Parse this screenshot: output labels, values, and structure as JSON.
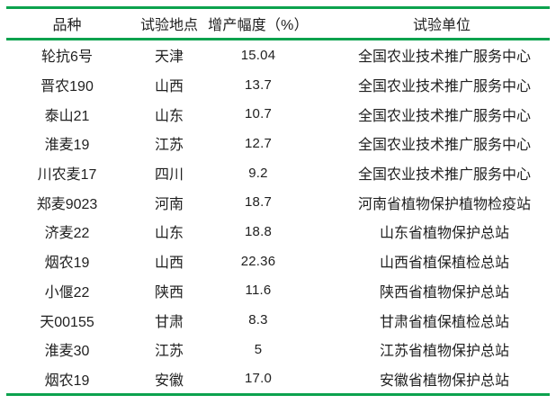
{
  "table": {
    "columns": [
      "品种",
      "试验地点",
      "增产幅度（%）",
      "试验单位"
    ],
    "rows": [
      {
        "variety": "轮抗6号",
        "location": "天津",
        "increase": "15.04",
        "unit": "全国农业技术推广服务中心"
      },
      {
        "variety": "晋农190",
        "location": "山西",
        "increase": "13.7",
        "unit": "全国农业技术推广服务中心"
      },
      {
        "variety": "泰山21",
        "location": "山东",
        "increase": "10.7",
        "unit": "全国农业技术推广服务中心"
      },
      {
        "variety": "淮麦19",
        "location": "江苏",
        "increase": "12.7",
        "unit": "全国农业技术推广服务中心"
      },
      {
        "variety": "川农麦17",
        "location": "四川",
        "increase": "9.2",
        "unit": "全国农业技术推广服务中心"
      },
      {
        "variety": "郑麦9023",
        "location": "河南",
        "increase": "18.7",
        "unit": "河南省植物保护植物检疫站"
      },
      {
        "variety": "济麦22",
        "location": "山东",
        "increase": "18.8",
        "unit": "山东省植物保护总站"
      },
      {
        "variety": "烟农19",
        "location": "山西",
        "increase": "22.36",
        "unit": "山西省植保植检总站"
      },
      {
        "variety": "小偃22",
        "location": "陕西",
        "increase": "11.6",
        "unit": "陕西省植物保护总站"
      },
      {
        "variety": "天00155",
        "location": "甘肃",
        "increase": "8.3",
        "unit": "甘肃省植保植检总站"
      },
      {
        "variety": "淮麦30",
        "location": "江苏",
        "increase": "5",
        "unit": "江苏省植物保护总站"
      },
      {
        "variety": "烟农19",
        "location": "安徽",
        "increase": "17.0",
        "unit": "安徽省植物保护总站"
      }
    ]
  },
  "colors": {
    "rule_green": "#0ca24e",
    "text": "#1f1f1f",
    "background": "#ffffff"
  }
}
